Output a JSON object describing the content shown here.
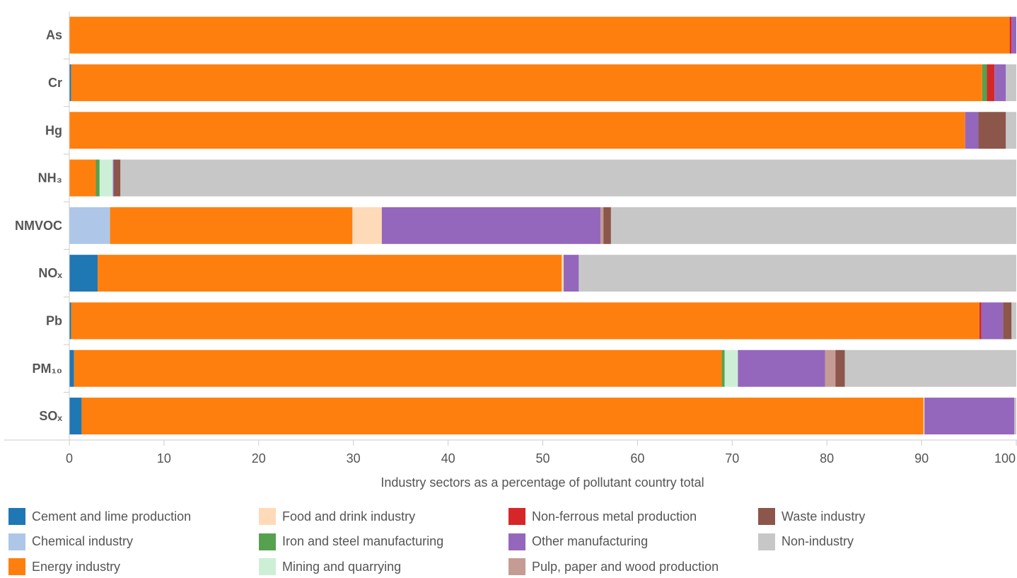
{
  "chart_data": {
    "type": "bar",
    "orientation": "horizontal",
    "stacked": true,
    "title": "",
    "xlabel": "Industry sectors as a percentage of pollutant country total",
    "ylabel": "",
    "xlim": [
      0,
      100
    ],
    "x_ticks": [
      "0",
      "10",
      "20",
      "30",
      "40",
      "50",
      "60",
      "70",
      "80",
      "90",
      "100"
    ],
    "grid": false,
    "legend_position": "bottom",
    "categories": [
      "As",
      "Cr",
      "Hg",
      "NH₃",
      "NMVOC",
      "NOₓ",
      "Pb",
      "PM₁₀",
      "SOₓ"
    ],
    "series": [
      {
        "name": "Cement and lime production",
        "color": "#1f77b4",
        "values": [
          0.0,
          0.2,
          0.0,
          0.0,
          0.0,
          3.0,
          0.2,
          0.5,
          1.3
        ]
      },
      {
        "name": "Chemical industry",
        "color": "#aec7e8",
        "values": [
          0.0,
          0.0,
          0.0,
          0.0,
          4.3,
          0.0,
          0.0,
          0.0,
          0.0
        ]
      },
      {
        "name": "Energy industry",
        "color": "#ff7f0e",
        "values": [
          99.3,
          96.2,
          94.6,
          2.8,
          25.6,
          49.0,
          95.9,
          68.4,
          88.9
        ]
      },
      {
        "name": "Food and drink industry",
        "color": "#ffdab9",
        "values": [
          0.0,
          0.0,
          0.0,
          0.0,
          3.1,
          0.2,
          0.0,
          0.0,
          0.1
        ]
      },
      {
        "name": "Iron and steel manufacturing",
        "color": "#55a14f",
        "values": [
          0.0,
          0.5,
          0.0,
          0.4,
          0.0,
          0.0,
          0.0,
          0.3,
          0.0
        ]
      },
      {
        "name": "Mining and quarrying",
        "color": "#cdefd6",
        "values": [
          0.0,
          0.0,
          0.0,
          1.4,
          0.0,
          0.0,
          0.0,
          1.4,
          0.0
        ]
      },
      {
        "name": "Non-ferrous metal production",
        "color": "#d62728",
        "values": [
          0.2,
          0.8,
          0.0,
          0.0,
          0.0,
          0.0,
          0.2,
          0.0,
          0.0
        ]
      },
      {
        "name": "Other manufacturing",
        "color": "#9467bd",
        "values": [
          0.5,
          1.2,
          1.4,
          0.1,
          23.1,
          1.6,
          2.3,
          9.2,
          9.5
        ]
      },
      {
        "name": "Pulp, paper and wood production",
        "color": "#c49c94",
        "values": [
          0.0,
          0.0,
          0.0,
          0.0,
          0.3,
          0.0,
          0.0,
          1.1,
          0.0
        ]
      },
      {
        "name": "Waste industry",
        "color": "#8c564b",
        "values": [
          0.0,
          0.0,
          2.9,
          0.7,
          0.8,
          0.0,
          0.9,
          1.0,
          0.0
        ]
      },
      {
        "name": "Non-industry",
        "color": "#c7c7c7",
        "values": [
          0.0,
          1.1,
          1.1,
          94.6,
          42.8,
          46.2,
          0.5,
          18.1,
          0.2
        ]
      }
    ]
  }
}
